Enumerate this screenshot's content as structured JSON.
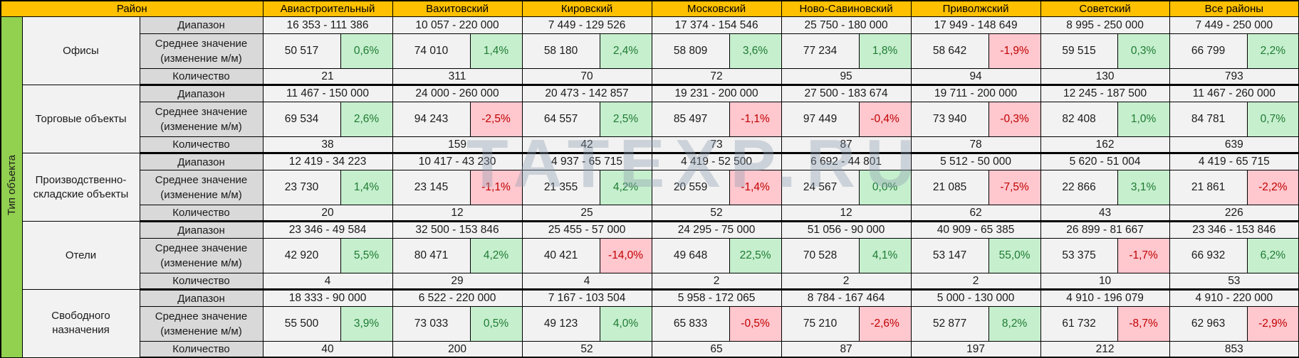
{
  "header": {
    "corner": "Район",
    "side": "Тип объекта"
  },
  "row_labels": {
    "range": "Диапазон",
    "avg_line1": "Среднее значение",
    "avg_line2": "(изменение м/м)",
    "count": "Количество"
  },
  "districts": [
    "Авиастроительный",
    "Вахитовский",
    "Кировский",
    "Московский",
    "Ново-Савиновский",
    "Приволжский",
    "Советский",
    "Все районы"
  ],
  "sections": [
    {
      "name": "Офисы",
      "range": [
        "16 353 - 111 386",
        "10 057 - 220 000",
        "7 449 - 129 526",
        "17 374 - 154 546",
        "25 750 - 180 000",
        "17 949 - 148 649",
        "8 995 - 250 000",
        "7 449 - 250 000"
      ],
      "avg": [
        "50 517",
        "74 010",
        "58 180",
        "58 809",
        "77 234",
        "58 642",
        "59 515",
        "66 799"
      ],
      "pct": [
        "0,6%",
        "1,4%",
        "2,4%",
        "3,6%",
        "1,8%",
        "-1,9%",
        "0,3%",
        "2,2%"
      ],
      "count": [
        "21",
        "311",
        "70",
        "72",
        "95",
        "94",
        "130",
        "793"
      ]
    },
    {
      "name": "Торговые объекты",
      "range": [
        "11 467 - 150 000",
        "24 000 - 260 000",
        "20 473 - 142 857",
        "19 231 - 200 000",
        "27 500 - 183 674",
        "19 711 - 200 000",
        "12 245 - 187 500",
        "11 467 - 260 000"
      ],
      "avg": [
        "69 534",
        "94 243",
        "64 557",
        "85 497",
        "97 449",
        "73 940",
        "82 408",
        "84 781"
      ],
      "pct": [
        "2,6%",
        "-2,5%",
        "2,5%",
        "-1,1%",
        "-0,4%",
        "-0,3%",
        "1,0%",
        "0,7%"
      ],
      "count": [
        "38",
        "159",
        "42",
        "73",
        "87",
        "78",
        "162",
        "639"
      ]
    },
    {
      "name": "Производственно-складские объекты",
      "range": [
        "12 419 - 34 223",
        "10 417 - 43 230",
        "4 937 - 65 715",
        "4 419 - 52 500",
        "6 692 - 44 801",
        "5 512 - 50 000",
        "5 620 - 51 004",
        "4 419 - 65 715"
      ],
      "avg": [
        "23 730",
        "23 145",
        "21 355",
        "20 559",
        "24 567",
        "21 085",
        "22 866",
        "21 861"
      ],
      "pct": [
        "1,4%",
        "-1,1%",
        "4,2%",
        "-1,4%",
        "0,0%",
        "-7,5%",
        "3,1%",
        "-2,2%"
      ],
      "count": [
        "20",
        "12",
        "25",
        "52",
        "12",
        "62",
        "43",
        "226"
      ]
    },
    {
      "name": "Отели",
      "range": [
        "23 346 - 49 584",
        "32 500 - 153 846",
        "25 455 - 57 000",
        "24 295 - 75 000",
        "51 056 - 90 000",
        "40 909 - 65 385",
        "26 899 - 81 667",
        "23 346 - 153 846"
      ],
      "avg": [
        "42 920",
        "80 471",
        "40 421",
        "49 648",
        "70 528",
        "53 147",
        "53 375",
        "66 932"
      ],
      "pct": [
        "5,5%",
        "4,2%",
        "-14,0%",
        "22,5%",
        "4,1%",
        "55,0%",
        "-1,7%",
        "6,2%"
      ],
      "count": [
        "4",
        "29",
        "4",
        "2",
        "2",
        "2",
        "10",
        "53"
      ]
    },
    {
      "name": "Свободного назначения",
      "range": [
        "18 333 - 90 000",
        "6 522 - 220 000",
        "7 167 - 103 504",
        "5 958 - 172 065",
        "8 784 - 167 464",
        "5 000 - 130 000",
        "4 910 - 196 079",
        "4 910 - 220 000"
      ],
      "avg": [
        "55 500",
        "73 033",
        "49 123",
        "65 833",
        "75 210",
        "52 877",
        "61 732",
        "62 963"
      ],
      "pct": [
        "3,9%",
        "0,5%",
        "4,0%",
        "-0,5%",
        "-2,6%",
        "8,2%",
        "-8,7%",
        "-2,9%"
      ],
      "count": [
        "40",
        "200",
        "52",
        "65",
        "87",
        "197",
        "212",
        "853"
      ]
    }
  ],
  "watermark": "TATEXP.RU",
  "colors": {
    "header_bg": "#FFC000",
    "side_bg": "#92D050",
    "label_bg": "#D9D9D9",
    "cell_bg": "#F2F2F2",
    "positive_bg": "#C6EFCE",
    "positive_text": "#1E7B32",
    "negative_bg": "#FFC7CE",
    "negative_text": "#C00000",
    "border": "#000000"
  }
}
